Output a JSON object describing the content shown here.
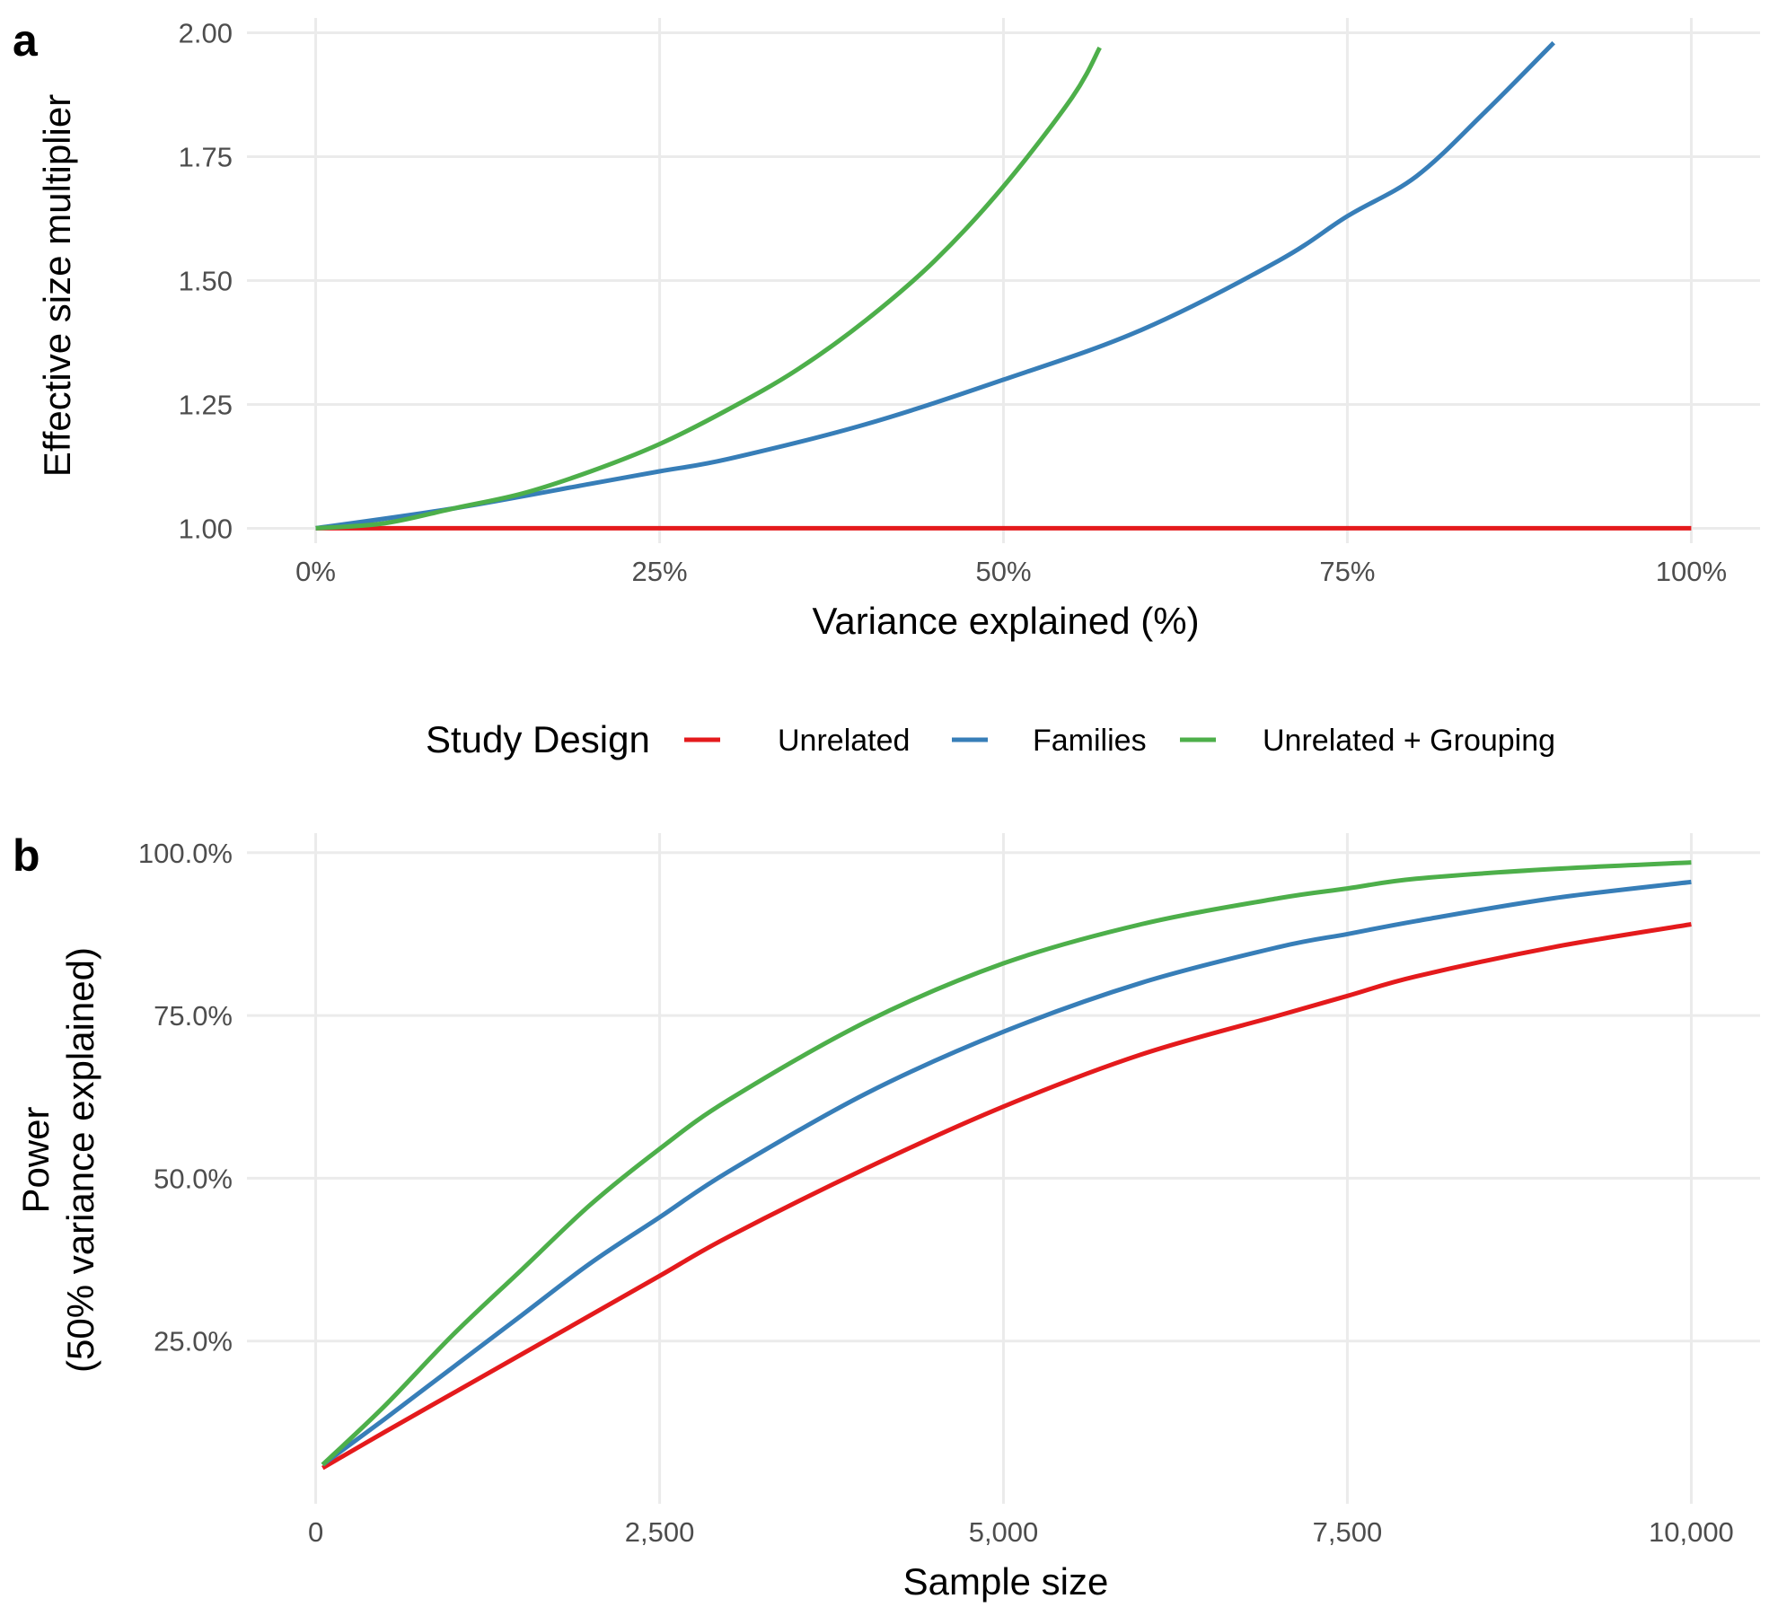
{
  "colors": {
    "unrelated": "#e41a1c",
    "families": "#377eb8",
    "unrelated_grouping": "#4daf4a"
  },
  "legend": {
    "title": "Study Design",
    "entries": [
      {
        "key": "unrelated",
        "label": "Unrelated",
        "color": "#e41a1c"
      },
      {
        "key": "families",
        "label": "Families",
        "color": "#377eb8"
      },
      {
        "key": "unrelated_grouping",
        "label": "Unrelated + Grouping",
        "color": "#4daf4a"
      }
    ],
    "placement": "between panels, centered"
  },
  "chart_data": [
    {
      "panel": "a",
      "type": "line",
      "xlabel": "Variance explained (%)",
      "ylabel": "Effective size multiplier",
      "xlim": [
        -5,
        105
      ],
      "ylim": [
        0.97,
        2.03
      ],
      "xticks": [
        0,
        25,
        50,
        75,
        100
      ],
      "xtick_labels": [
        "0%",
        "25%",
        "50%",
        "75%",
        "100%"
      ],
      "yticks": [
        1.0,
        1.25,
        1.5,
        1.75,
        2.0
      ],
      "ytick_labels": [
        "1.00",
        "1.25",
        "1.50",
        "1.75",
        "2.00"
      ],
      "grid": true,
      "series": [
        {
          "name": "Unrelated",
          "key": "unrelated",
          "x": [
            0,
            100
          ],
          "y": [
            1.0,
            1.0
          ]
        },
        {
          "name": "Families",
          "key": "families",
          "x": [
            0,
            10,
            20,
            25,
            30,
            40,
            50,
            60,
            70,
            75,
            80,
            85,
            90
          ],
          "y": [
            1.0,
            1.04,
            1.09,
            1.115,
            1.14,
            1.21,
            1.3,
            1.4,
            1.54,
            1.63,
            1.71,
            1.84,
            1.98
          ]
        },
        {
          "name": "Unrelated + Grouping",
          "key": "unrelated_grouping",
          "x": [
            0,
            5,
            10,
            15,
            20,
            25,
            30,
            35,
            40,
            45,
            50,
            55,
            57
          ],
          "y": [
            1.0,
            1.01,
            1.04,
            1.07,
            1.115,
            1.17,
            1.24,
            1.32,
            1.42,
            1.54,
            1.69,
            1.87,
            1.97
          ]
        }
      ]
    },
    {
      "panel": "b",
      "type": "line",
      "xlabel": "Sample size",
      "ylabel": [
        "Power",
        "(50% variance explained)"
      ],
      "xlim": [
        -500,
        10500
      ],
      "ylim": [
        0,
        1.03
      ],
      "xticks": [
        0,
        2500,
        5000,
        7500,
        10000
      ],
      "xtick_labels": [
        "0",
        "2,500",
        "5,000",
        "7,500",
        "10,000"
      ],
      "yticks": [
        0.25,
        0.5,
        0.75,
        1.0
      ],
      "ytick_labels": [
        "25.0%",
        "50.0%",
        "75.0%",
        "100.0%"
      ],
      "grid": true,
      "series": [
        {
          "name": "Unrelated",
          "key": "unrelated",
          "x": [
            50,
            500,
            1000,
            1500,
            2000,
            2500,
            3000,
            4000,
            5000,
            6000,
            7000,
            7500,
            8000,
            9000,
            10000
          ],
          "y": [
            0.055,
            0.11,
            0.17,
            0.23,
            0.29,
            0.35,
            0.41,
            0.515,
            0.61,
            0.69,
            0.75,
            0.78,
            0.81,
            0.855,
            0.89
          ]
        },
        {
          "name": "Families",
          "key": "families",
          "x": [
            50,
            500,
            1000,
            1500,
            2000,
            2500,
            3000,
            4000,
            5000,
            6000,
            7000,
            7500,
            8000,
            9000,
            10000
          ],
          "y": [
            0.06,
            0.13,
            0.21,
            0.29,
            0.37,
            0.44,
            0.51,
            0.63,
            0.725,
            0.8,
            0.855,
            0.875,
            0.895,
            0.93,
            0.955
          ]
        },
        {
          "name": "Unrelated + Grouping",
          "key": "unrelated_grouping",
          "x": [
            50,
            500,
            1000,
            1500,
            2000,
            2500,
            3000,
            4000,
            5000,
            6000,
            7000,
            7500,
            8000,
            9000,
            10000
          ],
          "y": [
            0.06,
            0.15,
            0.26,
            0.36,
            0.46,
            0.545,
            0.62,
            0.74,
            0.83,
            0.89,
            0.93,
            0.945,
            0.96,
            0.975,
            0.985
          ]
        }
      ]
    }
  ]
}
